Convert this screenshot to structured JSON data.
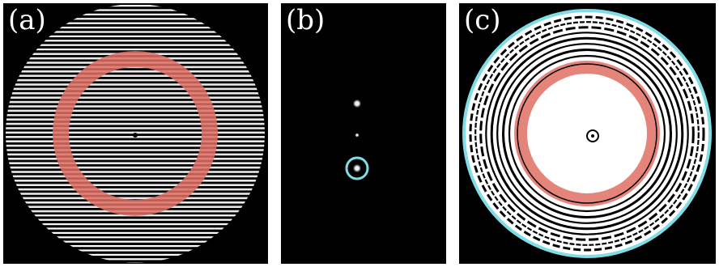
{
  "panels": [
    {
      "label": "(a)"
    },
    {
      "label": "(b)"
    },
    {
      "label": "(c)"
    }
  ],
  "colors": {
    "background": "#000000",
    "fringe": "#ffffff",
    "annulus_highlight": "#e06f63",
    "circle_highlight": "#7fdde6"
  }
}
